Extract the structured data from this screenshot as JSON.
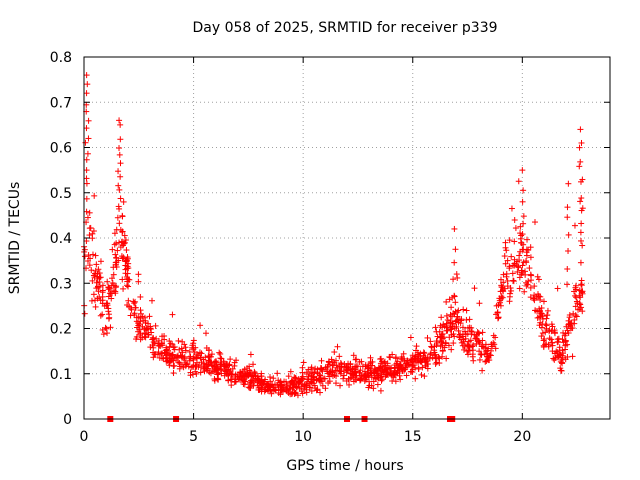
{
  "chart_data": {
    "type": "scatter",
    "title": "Day 058 of 2025, SRMTID for receiver p339",
    "xlabel": "GPS time / hours",
    "ylabel": "SRMTID / TECUs",
    "xlim": [
      0,
      24
    ],
    "ylim": [
      0,
      0.8
    ],
    "xticks": [
      0,
      5,
      10,
      15,
      20
    ],
    "yticks": [
      0,
      0.1,
      0.2,
      0.3,
      0.4,
      0.5,
      0.6,
      0.7,
      0.8
    ],
    "xtick_labels": [
      "0",
      "5",
      "10",
      "15",
      "20"
    ],
    "ytick_labels": [
      "0",
      "0.1",
      "0.2",
      "0.3",
      "0.4",
      "0.5",
      "0.6",
      "0.7",
      "0.8"
    ],
    "grid": true,
    "marker": "+",
    "color": "#ff0000",
    "gap_markers_x": [
      1.2,
      4.2,
      12.0,
      12.8,
      16.7,
      16.8
    ],
    "profile": [
      {
        "x": 0.0,
        "y": 0.3,
        "s": 0.12
      },
      {
        "x": 0.15,
        "y": 0.45,
        "s": 0.16
      },
      {
        "x": 0.5,
        "y": 0.32,
        "s": 0.12
      },
      {
        "x": 1.0,
        "y": 0.22,
        "s": 0.08
      },
      {
        "x": 1.4,
        "y": 0.32,
        "s": 0.1
      },
      {
        "x": 1.7,
        "y": 0.42,
        "s": 0.14
      },
      {
        "x": 2.2,
        "y": 0.24,
        "s": 0.07
      },
      {
        "x": 3.0,
        "y": 0.18,
        "s": 0.06
      },
      {
        "x": 4.0,
        "y": 0.14,
        "s": 0.05
      },
      {
        "x": 5.0,
        "y": 0.13,
        "s": 0.05
      },
      {
        "x": 6.5,
        "y": 0.11,
        "s": 0.04
      },
      {
        "x": 8.0,
        "y": 0.08,
        "s": 0.03
      },
      {
        "x": 9.5,
        "y": 0.07,
        "s": 0.03
      },
      {
        "x": 10.5,
        "y": 0.09,
        "s": 0.04
      },
      {
        "x": 11.5,
        "y": 0.11,
        "s": 0.05
      },
      {
        "x": 12.5,
        "y": 0.1,
        "s": 0.04
      },
      {
        "x": 13.5,
        "y": 0.1,
        "s": 0.04
      },
      {
        "x": 15.0,
        "y": 0.12,
        "s": 0.04
      },
      {
        "x": 16.0,
        "y": 0.15,
        "s": 0.06
      },
      {
        "x": 16.8,
        "y": 0.22,
        "s": 0.09
      },
      {
        "x": 17.5,
        "y": 0.18,
        "s": 0.07
      },
      {
        "x": 18.5,
        "y": 0.14,
        "s": 0.05
      },
      {
        "x": 19.2,
        "y": 0.3,
        "s": 0.1
      },
      {
        "x": 20.0,
        "y": 0.38,
        "s": 0.12
      },
      {
        "x": 21.0,
        "y": 0.2,
        "s": 0.08
      },
      {
        "x": 21.8,
        "y": 0.14,
        "s": 0.06
      },
      {
        "x": 22.5,
        "y": 0.25,
        "s": 0.1
      },
      {
        "x": 22.75,
        "y": 0.28,
        "s": 0.12
      }
    ],
    "spikes": [
      {
        "x": 0.12,
        "y": 0.76
      },
      {
        "x": 0.15,
        "y": 0.74
      },
      {
        "x": 1.6,
        "y": 0.66
      },
      {
        "x": 1.65,
        "y": 0.65
      },
      {
        "x": 16.9,
        "y": 0.42
      },
      {
        "x": 20.0,
        "y": 0.55
      },
      {
        "x": 22.1,
        "y": 0.52
      },
      {
        "x": 22.65,
        "y": 0.64
      },
      {
        "x": 22.7,
        "y": 0.61
      }
    ]
  }
}
